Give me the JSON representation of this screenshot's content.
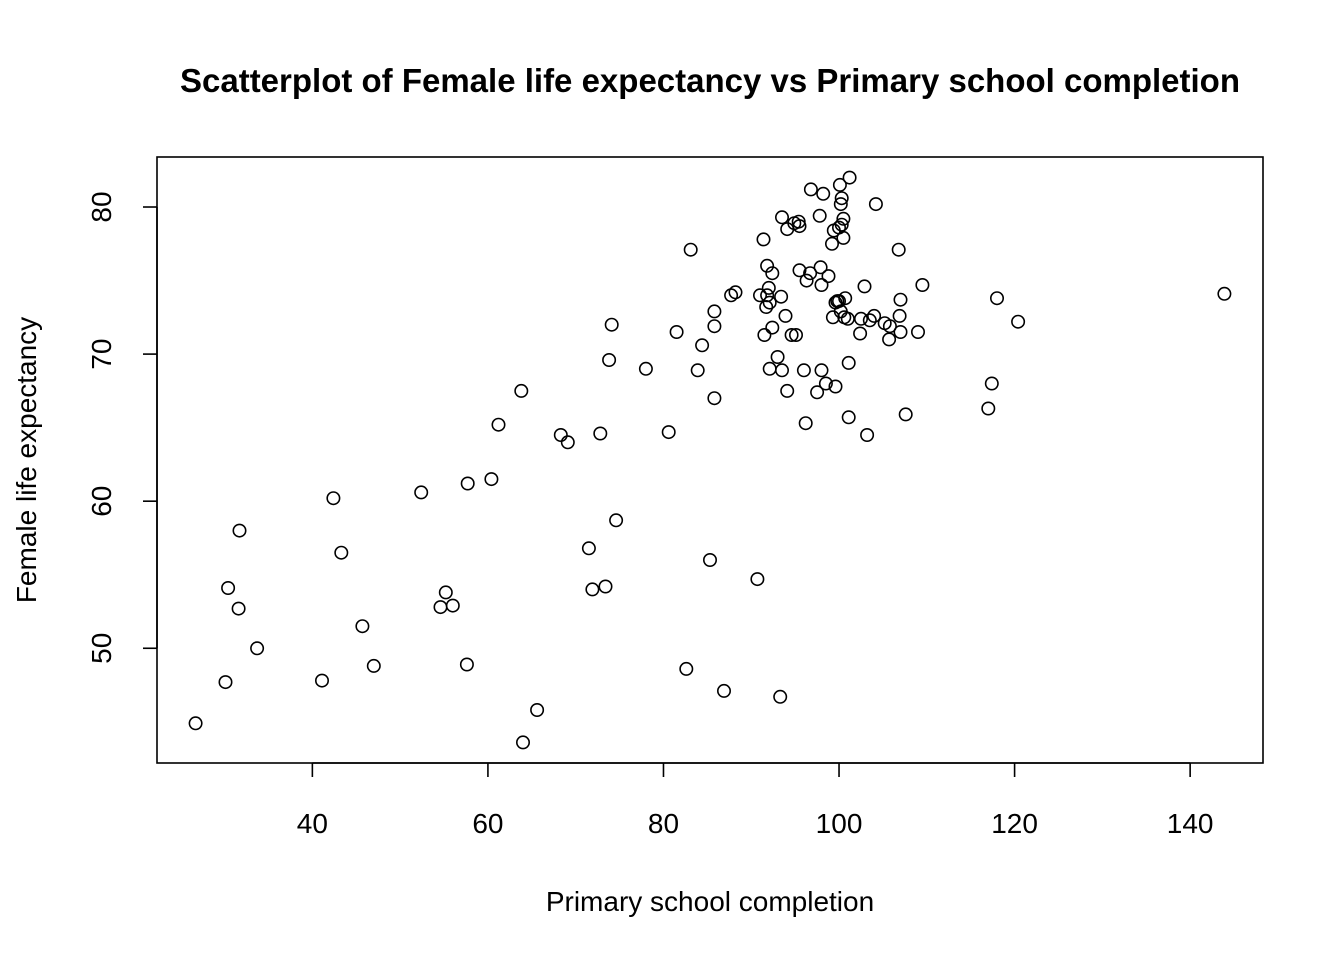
{
  "chart_data": {
    "type": "scatter",
    "title": "Scatterplot of Female life expectancy vs Primary school completion",
    "xlabel": "Primary school completion",
    "ylabel": "Female life expectancy",
    "xlim": [
      22.3,
      148.3
    ],
    "ylim": [
      42.2,
      83.4
    ],
    "xticks": [
      40,
      60,
      80,
      100,
      120,
      140
    ],
    "yticks": [
      50,
      60,
      70,
      80
    ],
    "grid": false,
    "legend": "none",
    "marker": "open-circle",
    "point_color": "#000000",
    "points": [
      [
        26.7,
        44.9
      ],
      [
        30.1,
        47.7
      ],
      [
        30.4,
        54.1
      ],
      [
        31.6,
        52.7
      ],
      [
        31.7,
        58.0
      ],
      [
        33.7,
        50.0
      ],
      [
        41.1,
        47.8
      ],
      [
        42.4,
        60.2
      ],
      [
        43.3,
        56.5
      ],
      [
        45.7,
        51.5
      ],
      [
        47.0,
        48.8
      ],
      [
        52.4,
        60.6
      ],
      [
        54.6,
        52.8
      ],
      [
        55.2,
        53.8
      ],
      [
        56.0,
        52.9
      ],
      [
        57.6,
        48.9
      ],
      [
        57.7,
        61.2
      ],
      [
        60.4,
        61.5
      ],
      [
        61.2,
        65.2
      ],
      [
        63.8,
        67.5
      ],
      [
        64.0,
        43.6
      ],
      [
        65.6,
        45.8
      ],
      [
        68.3,
        64.5
      ],
      [
        69.1,
        64.0
      ],
      [
        71.5,
        56.8
      ],
      [
        71.9,
        54.0
      ],
      [
        72.8,
        64.6
      ],
      [
        73.4,
        54.2
      ],
      [
        73.8,
        69.6
      ],
      [
        74.1,
        72.0
      ],
      [
        74.6,
        58.7
      ],
      [
        78.0,
        69.0
      ],
      [
        80.6,
        64.7
      ],
      [
        81.5,
        71.5
      ],
      [
        82.6,
        48.6
      ],
      [
        83.1,
        77.1
      ],
      [
        83.9,
        68.9
      ],
      [
        84.4,
        70.6
      ],
      [
        85.3,
        56.0
      ],
      [
        85.8,
        67.0
      ],
      [
        85.8,
        71.9
      ],
      [
        85.8,
        72.9
      ],
      [
        86.9,
        47.1
      ],
      [
        87.7,
        74.0
      ],
      [
        88.2,
        74.2
      ],
      [
        90.7,
        54.7
      ],
      [
        91.0,
        74.0
      ],
      [
        91.4,
        77.8
      ],
      [
        91.5,
        71.3
      ],
      [
        91.7,
        73.2
      ],
      [
        91.8,
        76.0
      ],
      [
        91.8,
        74.0
      ],
      [
        92.0,
        74.5
      ],
      [
        92.1,
        73.5
      ],
      [
        92.1,
        69.0
      ],
      [
        92.4,
        75.5
      ],
      [
        92.4,
        71.8
      ],
      [
        93.0,
        69.8
      ],
      [
        93.3,
        46.7
      ],
      [
        93.4,
        73.9
      ],
      [
        93.5,
        79.3
      ],
      [
        93.5,
        68.9
      ],
      [
        93.9,
        72.6
      ],
      [
        94.1,
        67.5
      ],
      [
        94.1,
        78.5
      ],
      [
        94.6,
        71.3
      ],
      [
        94.9,
        78.9
      ],
      [
        95.1,
        71.3
      ],
      [
        95.4,
        79.0
      ],
      [
        95.5,
        78.7
      ],
      [
        95.5,
        75.7
      ],
      [
        96.0,
        68.9
      ],
      [
        96.2,
        65.3
      ],
      [
        96.3,
        75.0
      ],
      [
        96.7,
        75.5
      ],
      [
        96.8,
        81.2
      ],
      [
        97.5,
        67.4
      ],
      [
        97.8,
        79.4
      ],
      [
        97.9,
        75.9
      ],
      [
        98.0,
        74.7
      ],
      [
        98.0,
        68.9
      ],
      [
        98.2,
        80.9
      ],
      [
        98.5,
        68.0
      ],
      [
        98.8,
        75.3
      ],
      [
        99.2,
        77.5
      ],
      [
        99.3,
        72.5
      ],
      [
        99.4,
        78.4
      ],
      [
        99.6,
        67.8
      ],
      [
        99.6,
        73.5
      ],
      [
        99.8,
        73.6
      ],
      [
        100.0,
        78.6
      ],
      [
        100.0,
        73.6
      ],
      [
        100.1,
        81.5
      ],
      [
        100.2,
        72.9
      ],
      [
        100.2,
        80.2
      ],
      [
        100.3,
        80.6
      ],
      [
        100.3,
        78.8
      ],
      [
        100.5,
        79.2
      ],
      [
        100.5,
        77.9
      ],
      [
        100.6,
        72.5
      ],
      [
        100.7,
        73.8
      ],
      [
        101.0,
        72.4
      ],
      [
        101.1,
        69.4
      ],
      [
        101.1,
        65.7
      ],
      [
        101.2,
        82.0
      ],
      [
        102.4,
        71.4
      ],
      [
        102.5,
        72.4
      ],
      [
        102.9,
        74.6
      ],
      [
        103.2,
        64.5
      ],
      [
        103.5,
        72.3
      ],
      [
        104.0,
        72.6
      ],
      [
        104.2,
        80.2
      ],
      [
        105.2,
        72.1
      ],
      [
        105.7,
        71.0
      ],
      [
        105.8,
        71.9
      ],
      [
        106.8,
        77.1
      ],
      [
        106.9,
        72.6
      ],
      [
        107.0,
        73.7
      ],
      [
        107.0,
        71.5
      ],
      [
        107.6,
        65.9
      ],
      [
        109.0,
        71.5
      ],
      [
        109.5,
        74.7
      ],
      [
        117.0,
        66.3
      ],
      [
        117.4,
        68.0
      ],
      [
        118.0,
        73.8
      ],
      [
        120.4,
        72.2
      ],
      [
        143.9,
        74.1
      ]
    ]
  }
}
